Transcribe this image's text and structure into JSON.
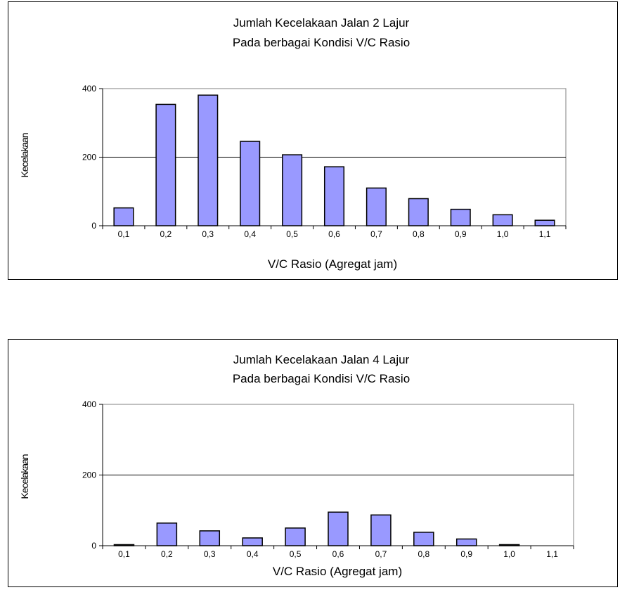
{
  "chart_data": [
    {
      "type": "bar",
      "title_lines": [
        "Jumlah Kecelakaan Jalan 2 Lajur",
        "Pada berbagai Kondisi V/C Rasio"
      ],
      "xlabel": "V/C Rasio  (Agregat   jam)",
      "ylabel": "Kecelakaan",
      "categories": [
        "0,1",
        "0,2",
        "0,3",
        "0,4",
        "0,5",
        "0,6",
        "0,7",
        "0,8",
        "0,9",
        "1,0",
        "1,1"
      ],
      "values": [
        52,
        354,
        381,
        246,
        207,
        172,
        110,
        79,
        48,
        32,
        16
      ],
      "ylim": [
        0,
        400
      ],
      "yticks": [
        0,
        200,
        400
      ],
      "gridlines": [
        200
      ],
      "legend": "none",
      "colors": {
        "bar_fill": "#9999ff",
        "bar_stroke": "#000000"
      }
    },
    {
      "type": "bar",
      "title_lines": [
        "Jumlah Kecelakaan Jalan 4 Lajur",
        "Pada berbagai Kondisi V/C Rasio"
      ],
      "xlabel": "V/C Rasio  (Agregat  jam)",
      "ylabel": "Kecelakaan",
      "categories": [
        "0,1",
        "0,2",
        "0,3",
        "0,4",
        "0,5",
        "0,6",
        "0,7",
        "0,8",
        "0,9",
        "1,0",
        "1,1"
      ],
      "values": [
        3,
        64,
        42,
        22,
        50,
        95,
        87,
        38,
        19,
        3,
        0
      ],
      "ylim": [
        0,
        400
      ],
      "yticks": [
        0,
        200,
        400
      ],
      "gridlines": [
        200
      ],
      "legend": "none",
      "colors": {
        "bar_fill": "#9999ff",
        "bar_stroke": "#000000"
      }
    }
  ]
}
